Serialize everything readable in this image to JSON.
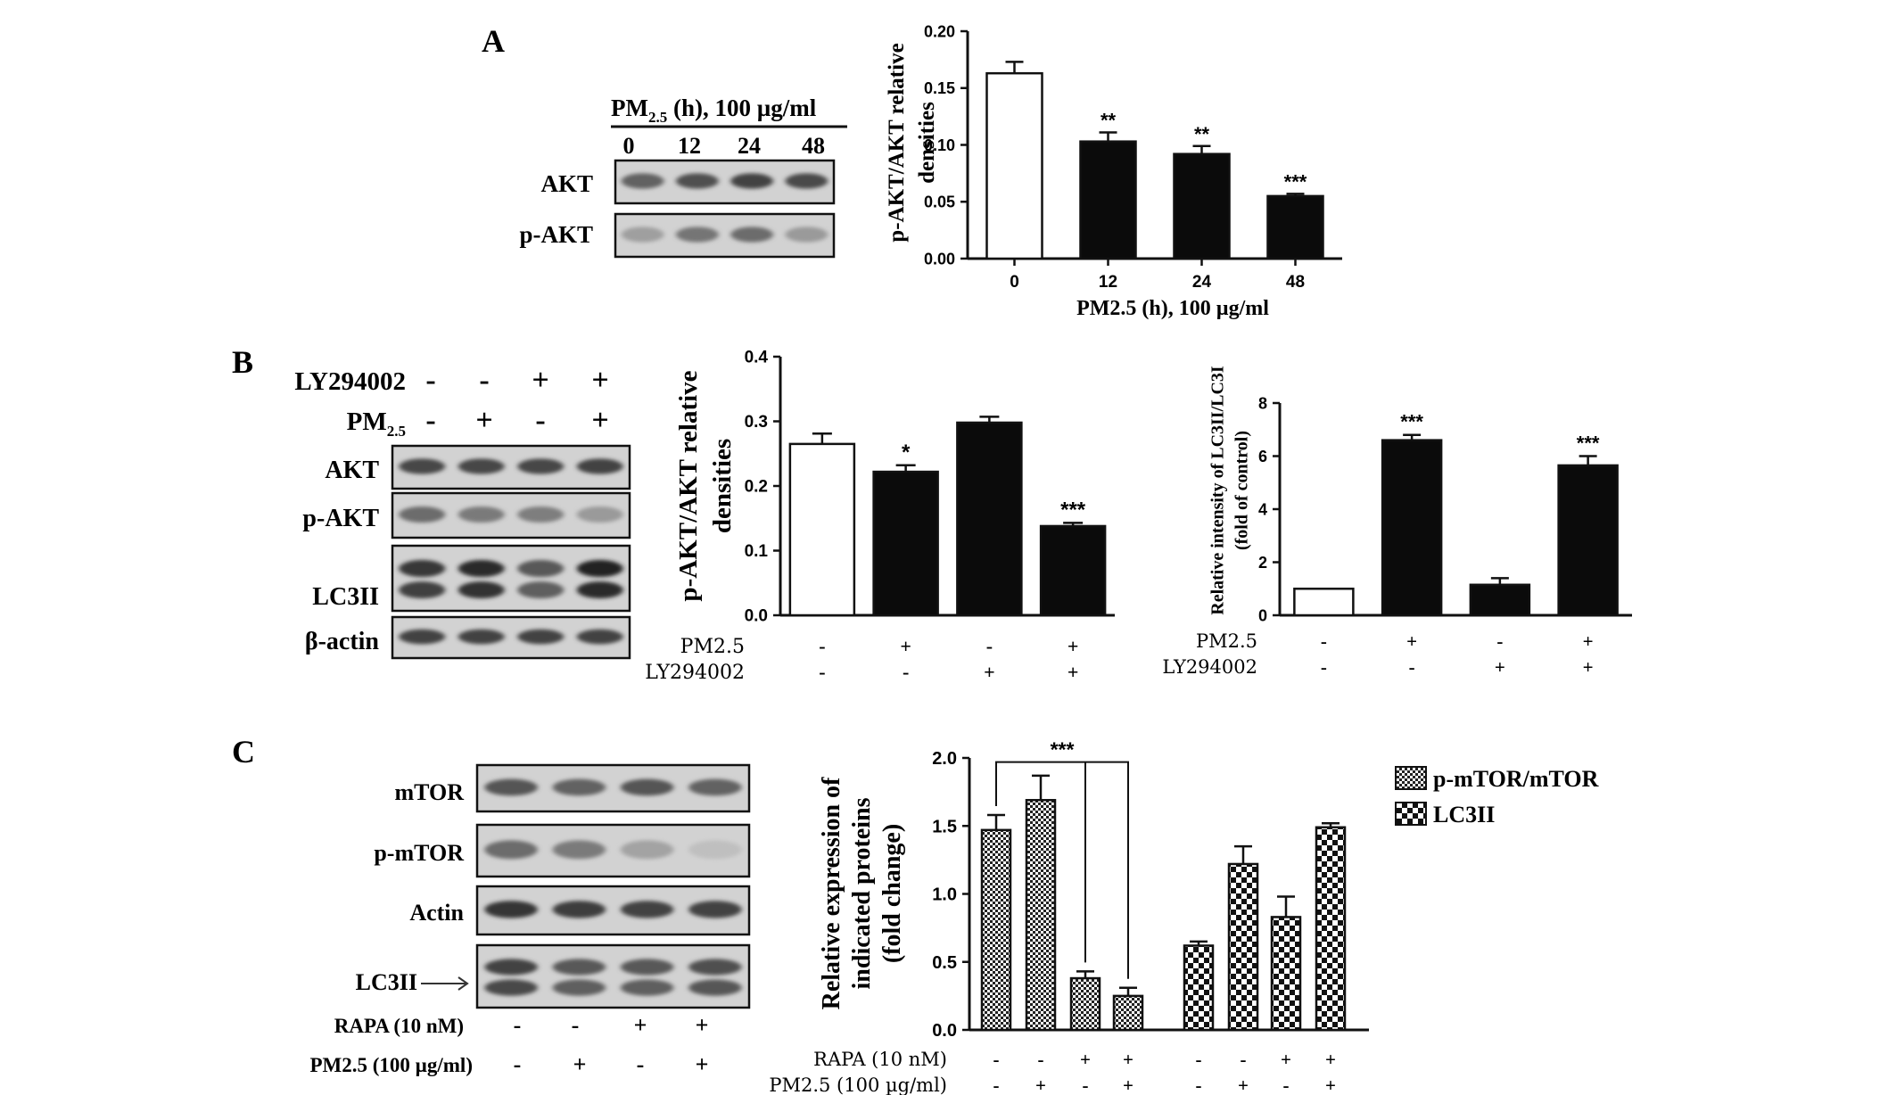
{
  "panels": {
    "A": {
      "letter": "A",
      "blot": {
        "treatment_header": [
          "PM",
          "2.5",
          " (h), 100 µg/ml"
        ],
        "lanes": [
          "0",
          "12",
          "24",
          "48"
        ],
        "rows": [
          {
            "label": "AKT",
            "intensities": [
              0.55,
              0.65,
              0.72,
              0.68
            ]
          },
          {
            "label": "p-AKT",
            "intensities": [
              0.22,
              0.45,
              0.5,
              0.25
            ]
          }
        ]
      }
    },
    "B": {
      "letter": "B",
      "blot": {
        "treatment_rows": [
          {
            "label": "LY294002",
            "signs": [
              "-",
              "-",
              "+",
              "+"
            ]
          },
          {
            "label": [
              "PM",
              "2.5"
            ],
            "signs": [
              "-",
              "+",
              "-",
              "+"
            ]
          }
        ],
        "rows": [
          {
            "label": "AKT",
            "intensities": [
              0.7,
              0.7,
              0.7,
              0.72
            ]
          },
          {
            "label": "p-AKT",
            "intensities": [
              0.5,
              0.42,
              0.4,
              0.25
            ]
          },
          {
            "label": "LC3II",
            "intensities": [
              0.78,
              0.85,
              0.6,
              0.9
            ],
            "double": true
          },
          {
            "label": "β-actin",
            "intensities": [
              0.72,
              0.72,
              0.72,
              0.72
            ]
          }
        ]
      }
    },
    "C": {
      "letter": "C",
      "blot": {
        "rows": [
          {
            "label": "mTOR",
            "intensities": [
              0.62,
              0.55,
              0.62,
              0.55
            ]
          },
          {
            "label": "p-mTOR",
            "intensities": [
              0.5,
              0.42,
              0.2,
              0.05
            ]
          },
          {
            "label": "Actin",
            "intensities": [
              0.8,
              0.75,
              0.72,
              0.72
            ]
          },
          {
            "label": "LC3II",
            "intensities": [
              0.72,
              0.6,
              0.6,
              0.65
            ],
            "double": true
          }
        ],
        "treatment_rows": [
          {
            "label": "RAPA (10 nM)",
            "signs": [
              "-",
              "-",
              "+",
              "+"
            ]
          },
          {
            "label": "PM2.5 (100 µg/ml)",
            "signs": [
              "-",
              "+",
              "-",
              "+"
            ]
          }
        ]
      }
    }
  },
  "chart_data": [
    {
      "id": "A",
      "type": "bar",
      "categories": [
        "0",
        "12",
        "24",
        "48"
      ],
      "values": [
        0.163,
        0.103,
        0.092,
        0.055
      ],
      "errors": [
        0.01,
        0.008,
        0.007,
        0.002
      ],
      "fills": [
        "white",
        "black",
        "black",
        "black"
      ],
      "significance": [
        "",
        "**",
        "**",
        "***"
      ],
      "ylabel": [
        "p-AKT/AKT relative",
        "densities"
      ],
      "xlabel": "PM2.5 (h), 100 µg/ml",
      "ylim": [
        0,
        0.2
      ],
      "yticks": [
        "0.00",
        "0.05",
        "0.10",
        "0.15",
        "0.20"
      ]
    },
    {
      "id": "B1",
      "type": "bar",
      "values": [
        0.265,
        0.222,
        0.298,
        0.138
      ],
      "errors": [
        0.016,
        0.01,
        0.009,
        0.005
      ],
      "fills": [
        "white",
        "black",
        "black",
        "black"
      ],
      "significance": [
        "",
        "*",
        "",
        "***"
      ],
      "ylabel": [
        "p-AKT/AKT relative",
        "densities"
      ],
      "ylim": [
        0,
        0.4
      ],
      "yticks": [
        "0.0",
        "0.1",
        "0.2",
        "0.3",
        "0.4"
      ],
      "treatment_rows": [
        {
          "label": "PM2.5",
          "signs": [
            "-",
            "+",
            "-",
            "+"
          ]
        },
        {
          "label": "LY294002",
          "signs": [
            "-",
            "-",
            "+",
            "+"
          ]
        }
      ]
    },
    {
      "id": "B2",
      "type": "bar",
      "values": [
        1.0,
        6.6,
        1.15,
        5.65
      ],
      "errors": [
        0,
        0.2,
        0.25,
        0.35
      ],
      "fills": [
        "white",
        "black",
        "black",
        "black"
      ],
      "significance": [
        "",
        "***",
        "",
        "***"
      ],
      "ylabel": [
        "Relative intensity of LC3II/LC3I",
        "(fold of control)"
      ],
      "ylim": [
        0,
        8
      ],
      "yticks": [
        "0",
        "2",
        "4",
        "6",
        "8"
      ],
      "treatment_rows": [
        {
          "label": "PM2.5",
          "signs": [
            "-",
            "+",
            "-",
            "+"
          ]
        },
        {
          "label": "LY294002",
          "signs": [
            "-",
            "-",
            "+",
            "+"
          ]
        }
      ]
    },
    {
      "id": "C",
      "type": "bar",
      "series": [
        {
          "name": "p-mTOR/mTOR",
          "values": [
            1.47,
            1.69,
            0.38,
            0.25
          ],
          "errors": [
            0.11,
            0.18,
            0.05,
            0.06
          ],
          "pattern": "dense-checker"
        },
        {
          "name": "LC3II",
          "values": [
            0.62,
            1.22,
            0.83,
            1.49
          ],
          "errors": [
            0.03,
            0.13,
            0.15,
            0.03
          ],
          "pattern": "large-checker"
        }
      ],
      "significance": "***",
      "ylabel": [
        "Relative expression of",
        "indicated proteins",
        "(fold change)"
      ],
      "ylim": [
        0,
        2.0
      ],
      "yticks": [
        "0.0",
        "0.5",
        "1.0",
        "1.5",
        "2.0"
      ],
      "treatment_rows": [
        {
          "label": "RAPA (10 nM)",
          "signs": [
            "-",
            "-",
            "+",
            "+",
            "-",
            "-",
            "+",
            "+"
          ]
        },
        {
          "label": "PM2.5 (100 µg/ml)",
          "signs": [
            "-",
            "+",
            "-",
            "+",
            "-",
            "+",
            "-",
            "+"
          ]
        }
      ],
      "legend_position": "right"
    }
  ]
}
